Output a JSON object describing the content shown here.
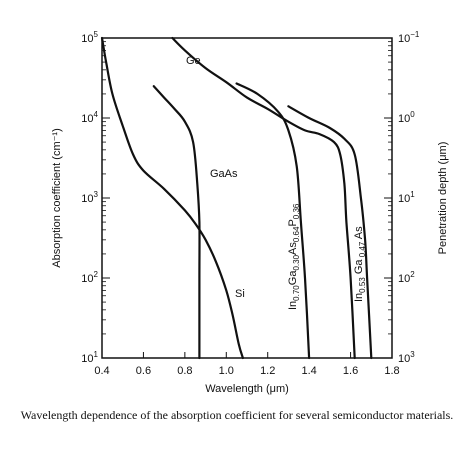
{
  "chart_data": {
    "type": "line",
    "x_scale": "linear",
    "y_scale": "log",
    "xlim": [
      0.4,
      1.8
    ],
    "ylim": [
      10,
      100000
    ],
    "xlabel": "Wavelength (μm)",
    "ylabel": "Absorption coefficient (cm⁻¹)",
    "y2label": "Penetration depth (μm)",
    "x_ticks": [
      "0.4",
      "0.6",
      "0.8",
      "1.0",
      "1.2",
      "1.4",
      "1.6",
      "1.8"
    ],
    "y_ticks": [
      {
        "base": "10",
        "exp": "1"
      },
      {
        "base": "10",
        "exp": "2"
      },
      {
        "base": "10",
        "exp": "3"
      },
      {
        "base": "10",
        "exp": "4"
      },
      {
        "base": "10",
        "exp": "5"
      }
    ],
    "y2_ticks": [
      {
        "base": "10",
        "exp": "3"
      },
      {
        "base": "10",
        "exp": "2"
      },
      {
        "base": "10",
        "exp": "1"
      },
      {
        "base": "10",
        "exp": "0"
      },
      {
        "base": "10",
        "exp": "−1"
      }
    ],
    "series": [
      {
        "name": "Ge",
        "points": [
          [
            0.74,
            100000
          ],
          [
            0.8,
            70000
          ],
          [
            0.9,
            42000
          ],
          [
            1.0,
            28000
          ],
          [
            1.1,
            18000
          ],
          [
            1.2,
            13000
          ],
          [
            1.3,
            9000
          ],
          [
            1.38,
            7000
          ],
          [
            1.45,
            6300
          ],
          [
            1.52,
            5000
          ],
          [
            1.55,
            3500
          ],
          [
            1.57,
            1500
          ],
          [
            1.58,
            500
          ],
          [
            1.6,
            100
          ],
          [
            1.62,
            10
          ]
        ]
      },
      {
        "name": "GaAs",
        "points": [
          [
            0.65,
            25000
          ],
          [
            0.7,
            18000
          ],
          [
            0.75,
            13000
          ],
          [
            0.8,
            9000
          ],
          [
            0.84,
            5000
          ],
          [
            0.86,
            1500
          ],
          [
            0.87,
            500
          ],
          [
            0.87,
            100
          ],
          [
            0.87,
            10
          ]
        ]
      },
      {
        "name": "Si",
        "points": [
          [
            0.4,
            100000
          ],
          [
            0.42,
            50000
          ],
          [
            0.45,
            20000
          ],
          [
            0.5,
            8000
          ],
          [
            0.55,
            3500
          ],
          [
            0.6,
            2200
          ],
          [
            0.7,
            1300
          ],
          [
            0.8,
            700
          ],
          [
            0.85,
            480
          ],
          [
            0.9,
            300
          ],
          [
            0.95,
            160
          ],
          [
            1.0,
            70
          ],
          [
            1.03,
            35
          ],
          [
            1.06,
            15
          ],
          [
            1.08,
            10
          ]
        ]
      },
      {
        "name": "In0.70Ga0.30As0.64P0.36",
        "points": [
          [
            1.05,
            27000
          ],
          [
            1.15,
            20000
          ],
          [
            1.25,
            12000
          ],
          [
            1.3,
            7000
          ],
          [
            1.34,
            2500
          ],
          [
            1.36,
            500
          ],
          [
            1.38,
            100
          ],
          [
            1.4,
            10
          ]
        ]
      },
      {
        "name": "In0.53Ga0.47As",
        "points": [
          [
            1.3,
            14000
          ],
          [
            1.4,
            10000
          ],
          [
            1.5,
            7500
          ],
          [
            1.57,
            5500
          ],
          [
            1.62,
            3500
          ],
          [
            1.65,
            1000
          ],
          [
            1.67,
            300
          ],
          [
            1.68,
            100
          ],
          [
            1.7,
            10
          ]
        ]
      }
    ]
  },
  "labels": {
    "ge": "Ge",
    "gaas": "GaAs",
    "si": "Si",
    "ingaasp": {
      "p1": "In",
      "s1": "0.70",
      "p2": "Ga",
      "s2": "0.30",
      "p3": "As",
      "s3": "0.64",
      "p4": "P",
      "s4": "0.36"
    },
    "ingaas": {
      "p1": "In",
      "s1": "0.53",
      "p2": " Ga",
      "s2": " 0.47",
      "p3": " As"
    }
  },
  "caption": "Wavelength dependence of the absorption coefficient for several semiconductor materials."
}
